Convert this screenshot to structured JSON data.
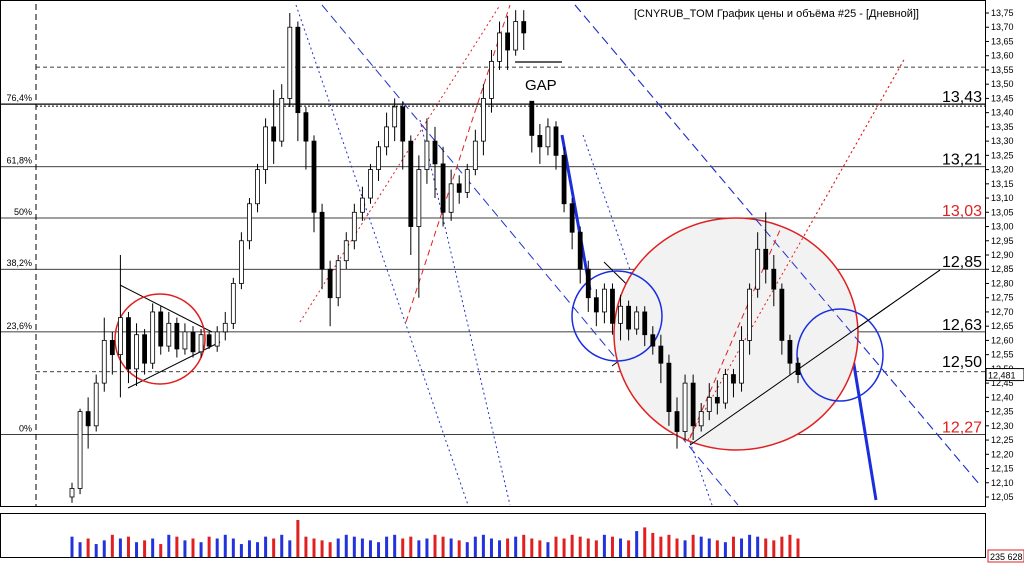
{
  "chart_data": {
    "type": "candlestick",
    "title": "[CNYRUB_TOM График цены и объёма #25 - [Дневной]]",
    "price_axis": {
      "min": 12.05,
      "max": 13.75,
      "ticks": [
        "13,75",
        "13,70",
        "13,65",
        "13,60",
        "13,55",
        "13,50",
        "13,45",
        "13,40",
        "13,35",
        "13,30",
        "13,25",
        "13,20",
        "13,15",
        "13,10",
        "13,05",
        "13,00",
        "12,95",
        "12,90",
        "12,85",
        "12,80",
        "12,75",
        "12,70",
        "12,65",
        "12,60",
        "12,55",
        "12,50",
        "12,45",
        "12,40",
        "12,35",
        "12,30",
        "12,25",
        "12,20",
        "12,15",
        "12,10",
        "12,05"
      ],
      "tick_values": [
        13.75,
        13.7,
        13.65,
        13.6,
        13.55,
        13.5,
        13.45,
        13.4,
        13.35,
        13.3,
        13.25,
        13.2,
        13.15,
        13.1,
        13.05,
        13.0,
        12.95,
        12.9,
        12.85,
        12.8,
        12.75,
        12.7,
        12.65,
        12.6,
        12.55,
        12.5,
        12.45,
        12.4,
        12.35,
        12.3,
        12.25,
        12.2,
        12.15,
        12.1,
        12.05
      ]
    },
    "current_price": {
      "value": 12.48,
      "label": "12,481"
    },
    "volume_label": "235 628",
    "gap_label": "GAP",
    "fib_levels": [
      {
        "label": "76,4%",
        "value": 13.43
      },
      {
        "label": "61,8%",
        "value": 13.21
      },
      {
        "label": "50%",
        "value": 13.03
      },
      {
        "label": "38,2%",
        "value": 12.85
      },
      {
        "label": "23,6%",
        "value": 12.63
      },
      {
        "label": "0%",
        "value": 12.27
      }
    ],
    "levels": [
      {
        "label": "13,43",
        "value": 13.43,
        "color": "#000000"
      },
      {
        "label": "13,21",
        "value": 13.21,
        "color": "#000000"
      },
      {
        "label": "13,03",
        "value": 13.03,
        "color": "#e02020"
      },
      {
        "label": "12,85",
        "value": 12.85,
        "color": "#000000"
      },
      {
        "label": "12,63",
        "value": 12.63,
        "color": "#000000"
      },
      {
        "label": "12,50",
        "value": 12.5,
        "color": "#000000"
      },
      {
        "label": "12,27",
        "value": 12.27,
        "color": "#e02020"
      }
    ],
    "extra_dashed_levels": [
      13.56,
      12.49
    ],
    "candles": [
      [
        12.05,
        12.08,
        12.03,
        12.1
      ],
      [
        12.08,
        12.35,
        12.06,
        12.36
      ],
      [
        12.35,
        12.3,
        12.22,
        12.4
      ],
      [
        12.3,
        12.45,
        12.28,
        12.48
      ],
      [
        12.45,
        12.6,
        12.42,
        12.68
      ],
      [
        12.6,
        12.55,
        12.48,
        12.63
      ],
      [
        12.55,
        12.68,
        12.4,
        12.9
      ],
      [
        12.68,
        12.5,
        12.45,
        12.7
      ],
      [
        12.5,
        12.62,
        12.44,
        12.66
      ],
      [
        12.62,
        12.52,
        12.48,
        12.64
      ],
      [
        12.52,
        12.7,
        12.5,
        12.73
      ],
      [
        12.7,
        12.58,
        12.55,
        12.72
      ],
      [
        12.58,
        12.66,
        12.56,
        12.7
      ],
      [
        12.66,
        12.57,
        12.54,
        12.68
      ],
      [
        12.57,
        12.63,
        12.55,
        12.66
      ],
      [
        12.63,
        12.56,
        12.54,
        12.65
      ],
      [
        12.56,
        12.62,
        12.54,
        12.64
      ],
      [
        12.62,
        12.58,
        12.57,
        12.63
      ],
      [
        12.58,
        12.63,
        12.56,
        12.65
      ],
      [
        12.63,
        12.66,
        12.6,
        12.7
      ],
      [
        12.66,
        12.8,
        12.64,
        12.82
      ],
      [
        12.8,
        12.95,
        12.78,
        12.98
      ],
      [
        12.95,
        13.08,
        12.92,
        13.1
      ],
      [
        13.08,
        13.2,
        13.05,
        13.22
      ],
      [
        13.2,
        13.35,
        13.15,
        13.38
      ],
      [
        13.35,
        13.3,
        13.22,
        13.48
      ],
      [
        13.3,
        13.45,
        13.28,
        13.5
      ],
      [
        13.45,
        13.7,
        13.42,
        13.75
      ],
      [
        13.7,
        13.4,
        13.3,
        13.72
      ],
      [
        13.4,
        13.3,
        13.2,
        13.42
      ],
      [
        13.3,
        13.05,
        12.98,
        13.32
      ],
      [
        13.05,
        12.85,
        12.78,
        13.08
      ],
      [
        12.85,
        12.75,
        12.65,
        12.88
      ],
      [
        12.75,
        12.88,
        12.72,
        12.9
      ],
      [
        12.88,
        12.95,
        12.85,
        12.98
      ],
      [
        12.95,
        13.05,
        12.92,
        13.08
      ],
      [
        13.05,
        13.1,
        13.02,
        13.14
      ],
      [
        13.1,
        13.2,
        13.08,
        13.22
      ],
      [
        13.2,
        13.28,
        13.16,
        13.3
      ],
      [
        13.28,
        13.35,
        13.25,
        13.4
      ],
      [
        13.35,
        13.42,
        13.3,
        13.45
      ],
      [
        13.42,
        13.3,
        13.2,
        13.44
      ],
      [
        13.3,
        13.0,
        12.9,
        13.32
      ],
      [
        13.0,
        13.2,
        12.75,
        13.25
      ],
      [
        13.2,
        13.3,
        13.15,
        13.38
      ],
      [
        13.3,
        13.22,
        13.1,
        13.35
      ],
      [
        13.22,
        13.05,
        13.0,
        13.28
      ],
      [
        13.05,
        13.15,
        13.02,
        13.2
      ],
      [
        13.15,
        13.12,
        13.08,
        13.18
      ],
      [
        13.12,
        13.2,
        13.1,
        13.22
      ],
      [
        13.2,
        13.3,
        13.18,
        13.34
      ],
      [
        13.3,
        13.45,
        13.25,
        13.5
      ],
      [
        13.45,
        13.58,
        13.4,
        13.62
      ],
      [
        13.58,
        13.68,
        13.55,
        13.72
      ],
      [
        13.68,
        13.62,
        13.55,
        13.74
      ],
      [
        13.62,
        13.72,
        13.6,
        13.76
      ],
      [
        13.72,
        13.68,
        13.62,
        13.76
      ],
      [
        13.44,
        13.32,
        13.26,
        13.44
      ],
      [
        13.32,
        13.28,
        13.22,
        13.36
      ],
      [
        13.28,
        13.35,
        13.25,
        13.38
      ],
      [
        13.35,
        13.25,
        13.2,
        13.37
      ],
      [
        13.25,
        13.08,
        13.05,
        13.28
      ],
      [
        13.08,
        12.98,
        12.92,
        13.1
      ],
      [
        12.98,
        12.85,
        12.8,
        13.0
      ],
      [
        12.85,
        12.75,
        12.7,
        12.88
      ],
      [
        12.75,
        12.7,
        12.65,
        12.78
      ],
      [
        12.7,
        12.78,
        12.66,
        12.8
      ],
      [
        12.78,
        12.66,
        12.62,
        12.8
      ],
      [
        12.66,
        12.72,
        12.6,
        12.76
      ],
      [
        12.72,
        12.64,
        12.6,
        12.74
      ],
      [
        12.64,
        12.7,
        12.62,
        12.72
      ],
      [
        12.7,
        12.62,
        12.58,
        12.72
      ],
      [
        12.62,
        12.58,
        12.55,
        12.65
      ],
      [
        12.58,
        12.52,
        12.45,
        12.62
      ],
      [
        12.52,
        12.35,
        12.3,
        12.55
      ],
      [
        12.35,
        12.28,
        12.22,
        12.4
      ],
      [
        12.28,
        12.45,
        12.25,
        12.48
      ],
      [
        12.45,
        12.3,
        12.25,
        12.48
      ],
      [
        12.3,
        12.35,
        12.28,
        12.38
      ],
      [
        12.35,
        12.4,
        12.32,
        12.45
      ],
      [
        12.4,
        12.38,
        12.34,
        12.46
      ],
      [
        12.38,
        12.48,
        12.36,
        12.5
      ],
      [
        12.48,
        12.45,
        12.4,
        12.5
      ],
      [
        12.45,
        12.6,
        12.42,
        12.65
      ],
      [
        12.6,
        12.78,
        12.55,
        12.8
      ],
      [
        12.78,
        12.92,
        12.75,
        12.98
      ],
      [
        12.92,
        12.85,
        12.8,
        13.05
      ],
      [
        12.85,
        12.78,
        12.72,
        12.9
      ],
      [
        12.78,
        12.6,
        12.55,
        12.8
      ],
      [
        12.6,
        12.52,
        12.48,
        12.62
      ],
      [
        12.52,
        12.48,
        12.45,
        12.54
      ]
    ],
    "volumes": [
      0.55,
      0.4,
      0.5,
      0.35,
      0.45,
      0.6,
      0.5,
      0.55,
      0.4,
      0.45,
      0.5,
      0.35,
      0.6,
      0.55,
      0.45,
      0.5,
      0.4,
      0.55,
      0.5,
      0.6,
      0.5,
      0.35,
      0.45,
      0.4,
      0.55,
      0.5,
      0.6,
      0.45,
      1.0,
      0.55,
      0.5,
      0.45,
      0.4,
      0.5,
      0.6,
      0.55,
      0.5,
      0.45,
      0.4,
      0.55,
      0.6,
      0.5,
      0.55,
      0.45,
      0.5,
      0.6,
      0.55,
      0.5,
      0.45,
      0.4,
      0.55,
      0.6,
      0.5,
      0.45,
      0.5,
      0.55,
      0.6,
      0.5,
      0.45,
      0.4,
      0.55,
      0.5,
      0.6,
      0.55,
      0.5,
      0.45,
      0.6,
      0.55,
      0.5,
      0.45,
      0.7,
      0.8,
      0.65,
      0.55,
      0.6,
      0.5,
      0.45,
      0.6,
      0.55,
      0.5,
      0.45,
      0.4,
      0.55,
      0.5,
      0.6,
      0.55,
      0.5,
      0.45,
      0.55,
      0.6,
      0.5
    ]
  }
}
